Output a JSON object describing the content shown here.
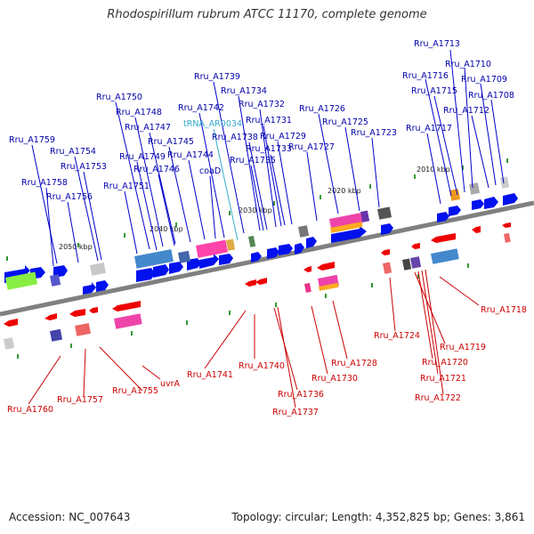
{
  "title": "Rhodospirillum rubrum ATCC 11170, complete genome",
  "footer": {
    "accession": "Accession: NC_007643",
    "info": "Topology: circular; Length: 4,352,825 bp; Genes: 3,861"
  },
  "colors": {
    "forward_label": "#0000aa",
    "reverse_label": "#cc0000",
    "rna_label": "#33aacc",
    "backbone": "#808080",
    "forward_gene": "#0000ee",
    "reverse_gene": "#ee0000"
  },
  "scale_ticks": [
    "2050 kbp",
    "2040 kbp",
    "2030 kbp",
    "2020 kbp",
    "2010 kbp"
  ],
  "top_labels": [
    "Rru_A1713",
    "Rru_A1710",
    "Rru_A1716",
    "Rru_A1709",
    "Rru_A1715",
    "Rru_A1708",
    "Rru_A1712",
    "Rru_A1717",
    "Rru_A1739",
    "Rru_A1734",
    "Rru_A1750",
    "Rru_A1732",
    "Rru_A1748",
    "Rru_A1742",
    "Rru_A1726",
    "Rru_A1731",
    "Rru_A1747",
    "tRNA_AR0034",
    "Rru_A1725",
    "Rru_A1738",
    "Rru_A1729",
    "Rru_A1723",
    "Rru_A1745",
    "Rru_A1759",
    "Rru_A1733",
    "Rru_A1727",
    "Rru_A1754",
    "Rru_A1749",
    "Rru_A1744",
    "Rru_A1735",
    "Rru_A1753",
    "Rru_A1746",
    "coaD",
    "Rru_A1758",
    "Rru_A1751",
    "Rru_A1756"
  ],
  "bottom_labels": [
    "Rru_A1718",
    "Rru_A1724",
    "Rru_A1719",
    "Rru_A1740",
    "Rru_A1728",
    "Rru_A1720",
    "Rru_A1741",
    "uvrA",
    "Rru_A1755",
    "Rru_A1730",
    "Rru_A1721",
    "Rru_A1736",
    "Rru_A1757",
    "Rru_A1722",
    "Rru_A1760",
    "Rru_A1737"
  ]
}
